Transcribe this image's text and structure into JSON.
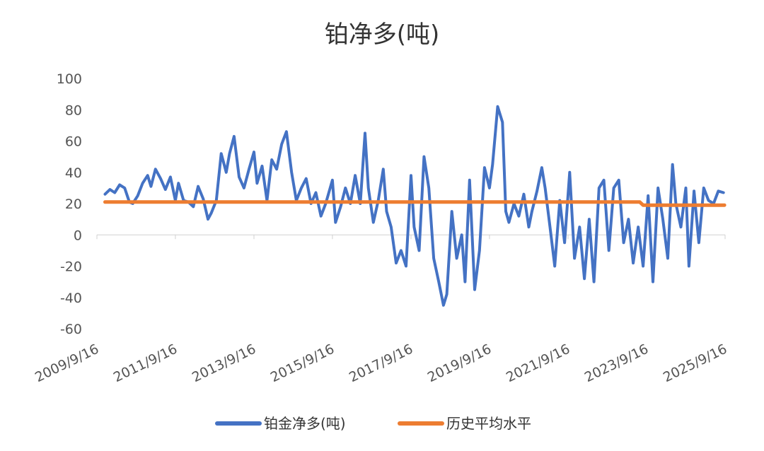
{
  "chart_data": {
    "type": "line",
    "title": "铂净多(吨)",
    "xlabel": "",
    "ylabel": "",
    "ylim": [
      -60,
      100
    ],
    "yticks": [
      100,
      80,
      60,
      40,
      20,
      0,
      -20,
      -40,
      -60
    ],
    "xlim": [
      "2009-09-16",
      "2025-09-16"
    ],
    "xticks": [
      "2009/9/16",
      "2011/9/16",
      "2013/9/16",
      "2015/9/16",
      "2017/9/16",
      "2019/9/16",
      "2021/9/16",
      "2023/9/16",
      "2025/9/16"
    ],
    "grid": false,
    "legend": "bottom",
    "series": [
      {
        "name": "铂金净多(吨)",
        "color": "#4472C4",
        "points": [
          [
            "2009-12-01",
            26
          ],
          [
            "2010-01-15",
            29
          ],
          [
            "2010-03-01",
            27
          ],
          [
            "2010-04-15",
            32
          ],
          [
            "2010-06-01",
            30
          ],
          [
            "2010-07-15",
            21
          ],
          [
            "2010-08-15",
            20
          ],
          [
            "2010-10-01",
            25
          ],
          [
            "2010-11-15",
            33
          ],
          [
            "2011-01-01",
            38
          ],
          [
            "2011-02-01",
            31
          ],
          [
            "2011-03-15",
            42
          ],
          [
            "2011-05-01",
            36
          ],
          [
            "2011-06-15",
            29
          ],
          [
            "2011-08-01",
            37
          ],
          [
            "2011-09-16",
            22
          ],
          [
            "2011-10-15",
            33
          ],
          [
            "2011-12-01",
            22
          ],
          [
            "2012-01-15",
            21
          ],
          [
            "2012-03-01",
            18
          ],
          [
            "2012-04-15",
            31
          ],
          [
            "2012-06-01",
            23
          ],
          [
            "2012-07-15",
            10
          ],
          [
            "2012-08-15",
            14
          ],
          [
            "2012-10-01",
            22
          ],
          [
            "2012-11-15",
            52
          ],
          [
            "2013-01-01",
            40
          ],
          [
            "2013-02-01",
            52
          ],
          [
            "2013-03-15",
            63
          ],
          [
            "2013-05-01",
            37
          ],
          [
            "2013-06-15",
            30
          ],
          [
            "2013-08-01",
            42
          ],
          [
            "2013-09-16",
            53
          ],
          [
            "2013-10-15",
            33
          ],
          [
            "2013-12-01",
            44
          ],
          [
            "2014-01-15",
            22
          ],
          [
            "2014-03-01",
            48
          ],
          [
            "2014-04-15",
            42
          ],
          [
            "2014-06-01",
            58
          ],
          [
            "2014-07-15",
            66
          ],
          [
            "2014-09-01",
            40
          ],
          [
            "2014-10-15",
            22
          ],
          [
            "2014-12-01",
            30
          ],
          [
            "2015-01-15",
            36
          ],
          [
            "2015-03-01",
            20
          ],
          [
            "2015-04-15",
            27
          ],
          [
            "2015-06-01",
            12
          ],
          [
            "2015-07-15",
            20
          ],
          [
            "2015-09-16",
            35
          ],
          [
            "2015-10-15",
            8
          ],
          [
            "2015-12-01",
            18
          ],
          [
            "2016-01-15",
            30
          ],
          [
            "2016-03-01",
            20
          ],
          [
            "2016-04-15",
            38
          ],
          [
            "2016-06-01",
            20
          ],
          [
            "2016-07-15",
            65
          ],
          [
            "2016-08-15",
            30
          ],
          [
            "2016-10-01",
            8
          ],
          [
            "2016-11-15",
            22
          ],
          [
            "2017-01-01",
            42
          ],
          [
            "2017-02-01",
            15
          ],
          [
            "2017-03-15",
            5
          ],
          [
            "2017-05-01",
            -18
          ],
          [
            "2017-06-15",
            -10
          ],
          [
            "2017-08-01",
            -20
          ],
          [
            "2017-09-16",
            38
          ],
          [
            "2017-10-15",
            5
          ],
          [
            "2017-12-01",
            -10
          ],
          [
            "2018-01-15",
            50
          ],
          [
            "2018-03-01",
            30
          ],
          [
            "2018-04-15",
            -15
          ],
          [
            "2018-06-01",
            -30
          ],
          [
            "2018-07-15",
            -45
          ],
          [
            "2018-08-15",
            -38
          ],
          [
            "2018-10-01",
            15
          ],
          [
            "2018-11-15",
            -15
          ],
          [
            "2019-01-01",
            0
          ],
          [
            "2019-02-01",
            -30
          ],
          [
            "2019-03-15",
            35
          ],
          [
            "2019-05-01",
            -35
          ],
          [
            "2019-06-15",
            -10
          ],
          [
            "2019-08-01",
            43
          ],
          [
            "2019-09-16",
            30
          ],
          [
            "2019-10-15",
            45
          ],
          [
            "2019-12-01",
            82
          ],
          [
            "2020-01-15",
            72
          ],
          [
            "2020-02-15",
            15
          ],
          [
            "2020-03-15",
            8
          ],
          [
            "2020-05-01",
            20
          ],
          [
            "2020-06-15",
            12
          ],
          [
            "2020-08-01",
            26
          ],
          [
            "2020-09-16",
            5
          ],
          [
            "2020-10-15",
            15
          ],
          [
            "2020-12-01",
            28
          ],
          [
            "2021-01-15",
            43
          ],
          [
            "2021-02-15",
            30
          ],
          [
            "2021-04-01",
            5
          ],
          [
            "2021-05-15",
            -20
          ],
          [
            "2021-07-01",
            22
          ],
          [
            "2021-08-15",
            -5
          ],
          [
            "2021-10-01",
            40
          ],
          [
            "2021-11-15",
            -15
          ],
          [
            "2022-01-01",
            5
          ],
          [
            "2022-02-15",
            -28
          ],
          [
            "2022-04-01",
            10
          ],
          [
            "2022-05-15",
            -30
          ],
          [
            "2022-07-01",
            30
          ],
          [
            "2022-08-15",
            35
          ],
          [
            "2022-10-01",
            -10
          ],
          [
            "2022-11-15",
            30
          ],
          [
            "2023-01-01",
            35
          ],
          [
            "2023-02-15",
            -5
          ],
          [
            "2023-04-01",
            10
          ],
          [
            "2023-05-15",
            -18
          ],
          [
            "2023-07-01",
            5
          ],
          [
            "2023-08-15",
            -20
          ],
          [
            "2023-10-01",
            25
          ],
          [
            "2023-11-15",
            -30
          ],
          [
            "2024-01-01",
            30
          ],
          [
            "2024-02-15",
            10
          ],
          [
            "2024-04-01",
            -15
          ],
          [
            "2024-05-15",
            45
          ],
          [
            "2024-06-15",
            20
          ],
          [
            "2024-08-01",
            5
          ],
          [
            "2024-09-16",
            30
          ],
          [
            "2024-10-15",
            -20
          ],
          [
            "2024-12-01",
            28
          ],
          [
            "2025-01-15",
            -5
          ],
          [
            "2025-03-01",
            30
          ],
          [
            "2025-04-15",
            22
          ],
          [
            "2025-06-01",
            20
          ],
          [
            "2025-07-15",
            28
          ],
          [
            "2025-09-01",
            27
          ]
        ]
      },
      {
        "name": "历史平均水平",
        "color": "#ED7D31",
        "points": [
          [
            "2009-12-01",
            21
          ],
          [
            "2023-07-15",
            21
          ],
          [
            "2023-08-15",
            19
          ],
          [
            "2025-09-10",
            19
          ]
        ]
      }
    ]
  }
}
